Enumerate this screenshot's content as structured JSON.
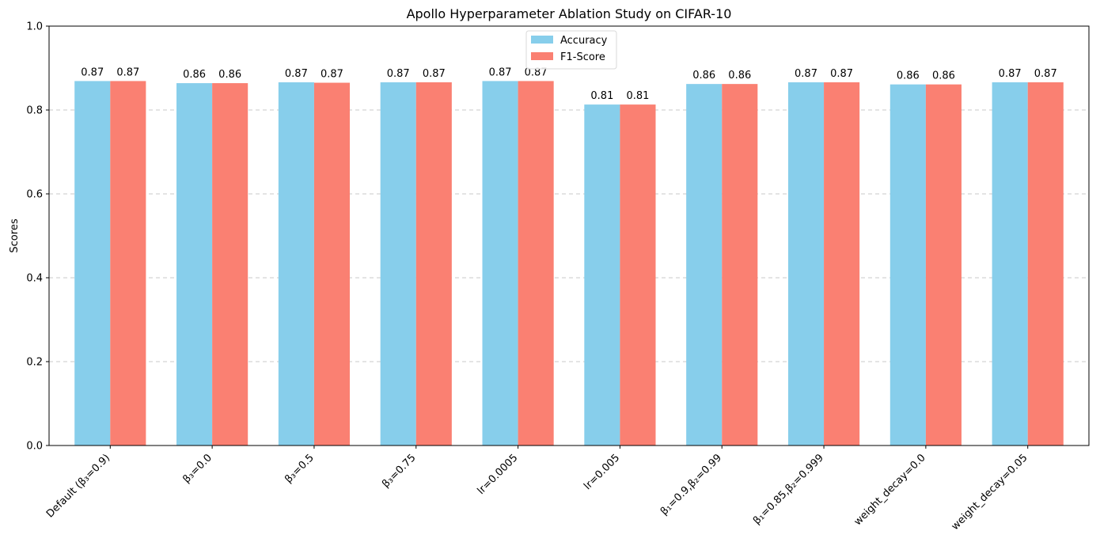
{
  "chart_data": {
    "type": "bar",
    "title": "Apollo Hyperparameter Ablation Study on CIFAR-10",
    "xlabel": "",
    "ylabel": "Scores",
    "ylim": [
      0,
      1.0
    ],
    "yticks": [
      0.0,
      0.2,
      0.4,
      0.6,
      0.8,
      1.0
    ],
    "ytick_labels": [
      "0.0",
      "0.2",
      "0.4",
      "0.6",
      "0.8",
      "1.0"
    ],
    "grid": "y-dashed",
    "legend_position": "top-center",
    "categories": [
      "Default (β₃=0.9)",
      "β₃=0.0",
      "β₃=0.5",
      "β₃=0.75",
      "lr=0.0005",
      "lr=0.005",
      "β₁=0.9,β₂=0.99",
      "β₁=0.85,β₂=0.999",
      "weight_decay=0.0",
      "weight_decay=0.05"
    ],
    "series": [
      {
        "name": "Accuracy",
        "color": "#87ceeb",
        "values": [
          0.869,
          0.864,
          0.866,
          0.866,
          0.869,
          0.813,
          0.862,
          0.866,
          0.861,
          0.866
        ],
        "labels": [
          "0.87",
          "0.86",
          "0.87",
          "0.87",
          "0.87",
          "0.81",
          "0.86",
          "0.87",
          "0.86",
          "0.87"
        ]
      },
      {
        "name": "F1-Score",
        "color": "#fa8072",
        "values": [
          0.869,
          0.864,
          0.865,
          0.866,
          0.869,
          0.813,
          0.862,
          0.866,
          0.861,
          0.866
        ],
        "labels": [
          "0.87",
          "0.86",
          "0.87",
          "0.87",
          "0.87",
          "0.81",
          "0.86",
          "0.87",
          "0.86",
          "0.87"
        ]
      }
    ]
  }
}
